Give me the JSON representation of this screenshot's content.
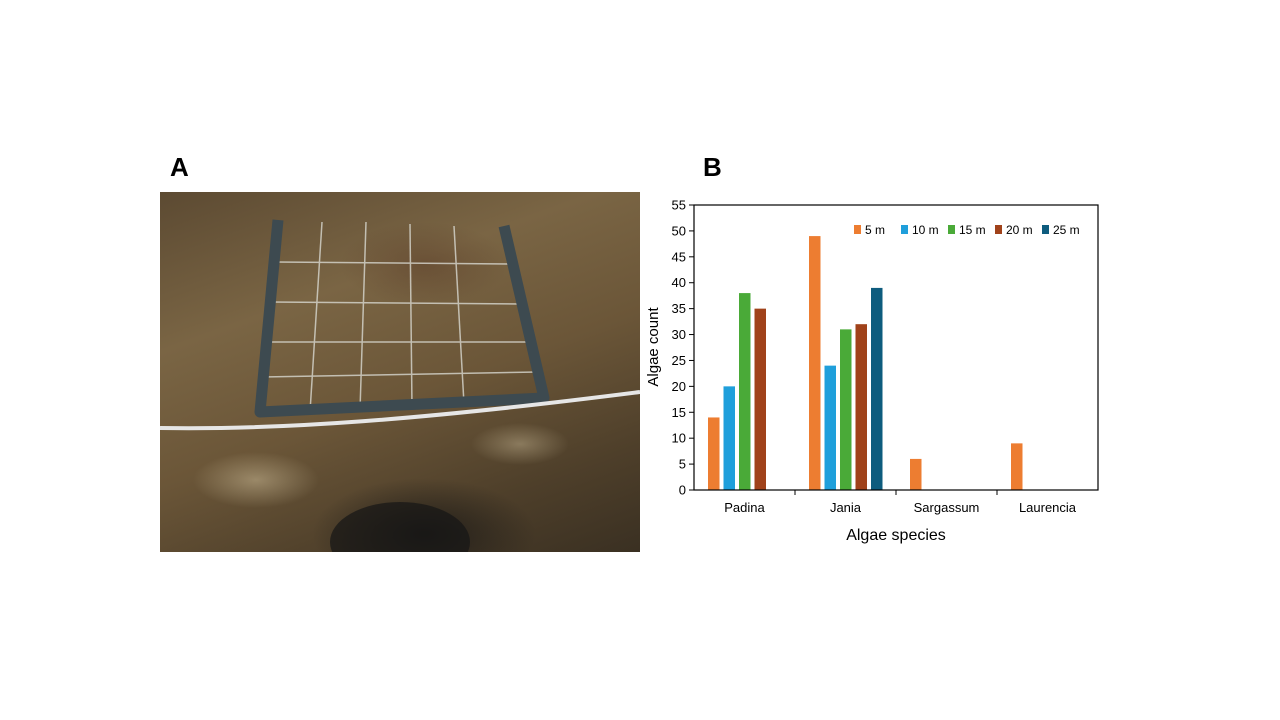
{
  "panels": {
    "a_label": "A",
    "b_label": "B"
  },
  "chart_data": {
    "type": "bar",
    "xlabel": "Algae species",
    "ylabel": "Algae count",
    "ylim": [
      0,
      55
    ],
    "yticks": [
      0,
      5,
      10,
      15,
      20,
      25,
      30,
      35,
      40,
      45,
      50,
      55
    ],
    "categories": [
      "Padina",
      "Jania",
      "Sargassum",
      "Laurencia"
    ],
    "legend_position": "top-right",
    "grid": false,
    "series": [
      {
        "name": "5 m",
        "color": "#ed7d31",
        "values": [
          14,
          49,
          6,
          9
        ]
      },
      {
        "name": "10 m",
        "color": "#1f9fdb",
        "values": [
          20,
          24,
          0,
          0
        ]
      },
      {
        "name": "15 m",
        "color": "#4aaa38",
        "values": [
          38,
          31,
          0,
          0
        ]
      },
      {
        "name": "20 m",
        "color": "#a0421a",
        "values": [
          35,
          32,
          0,
          0
        ]
      },
      {
        "name": "25 m",
        "color": "#0e5c7e",
        "values": [
          0,
          39,
          0,
          0
        ]
      }
    ]
  }
}
